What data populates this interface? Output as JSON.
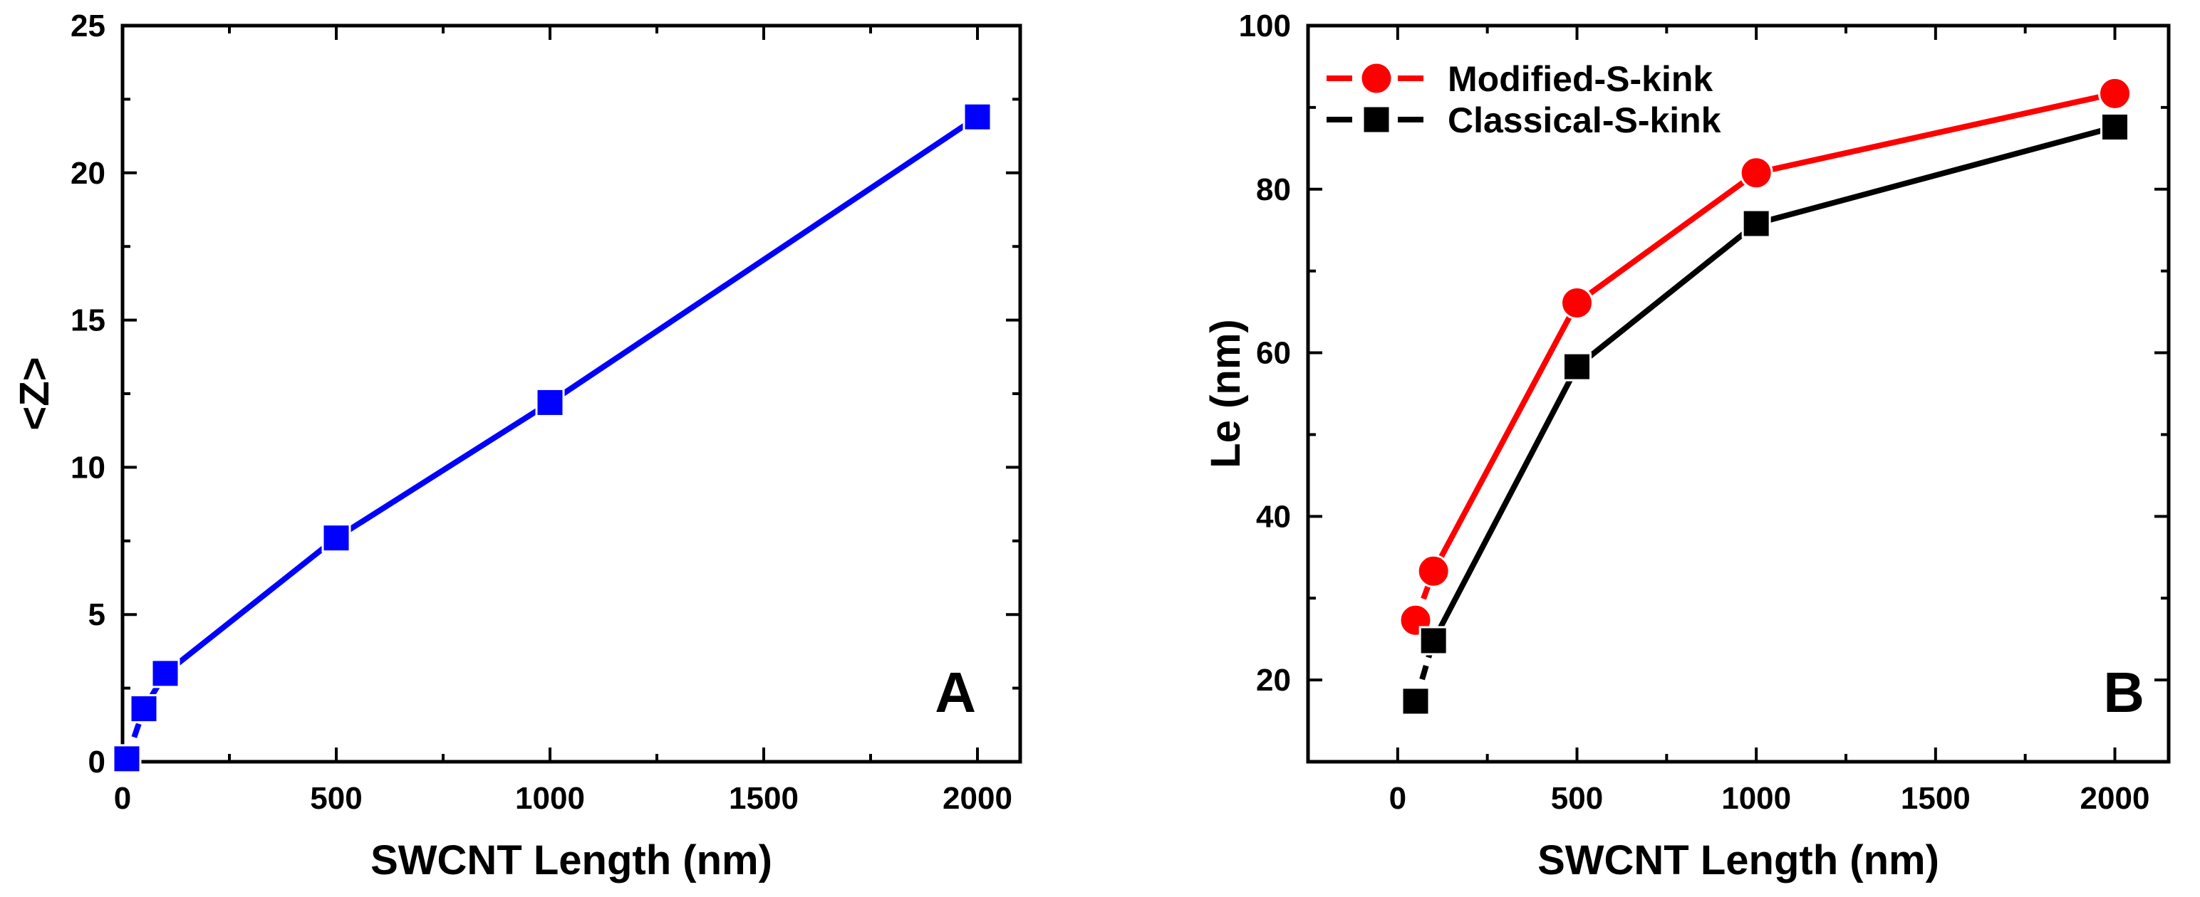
{
  "chart_data": [
    {
      "type": "line",
      "panel_label": "A",
      "title": "",
      "xlabel": "SWCNT Length (nm)",
      "ylabel": "<Z>",
      "xlim": [
        0,
        2100
      ],
      "ylim": [
        0,
        25
      ],
      "xticks": [
        0,
        500,
        1000,
        1500,
        2000
      ],
      "yticks": [
        0,
        5,
        10,
        15,
        20,
        25
      ],
      "grid": false,
      "series": [
        {
          "name": "<Z>",
          "color": "#0000ff",
          "marker": "square",
          "x": [
            10,
            50,
            100,
            500,
            1000,
            2000
          ],
          "y": [
            0.1,
            1.8,
            3.0,
            7.6,
            12.2,
            21.9
          ]
        }
      ]
    },
    {
      "type": "line",
      "panel_label": "B",
      "title": "",
      "xlabel": "SWCNT Length (nm)",
      "ylabel": "Le (nm)",
      "xlim": [
        -250,
        2150
      ],
      "ylim": [
        10,
        100
      ],
      "xticks": [
        0,
        500,
        1000,
        1500,
        2000
      ],
      "yticks": [
        20,
        40,
        60,
        80,
        100
      ],
      "grid": false,
      "legend_position": "top-left",
      "series": [
        {
          "name": "Modified-S-kink",
          "color": "#ff0000",
          "marker": "circle",
          "x": [
            50,
            100,
            500,
            1000,
            2000
          ],
          "y": [
            27.3,
            33.3,
            66.1,
            82.0,
            91.7
          ]
        },
        {
          "name": "Classical-S-kink",
          "color": "#000000",
          "marker": "square",
          "x": [
            50,
            100,
            500,
            1000,
            2000
          ],
          "y": [
            17.4,
            24.8,
            58.3,
            75.8,
            87.6
          ]
        }
      ]
    }
  ]
}
